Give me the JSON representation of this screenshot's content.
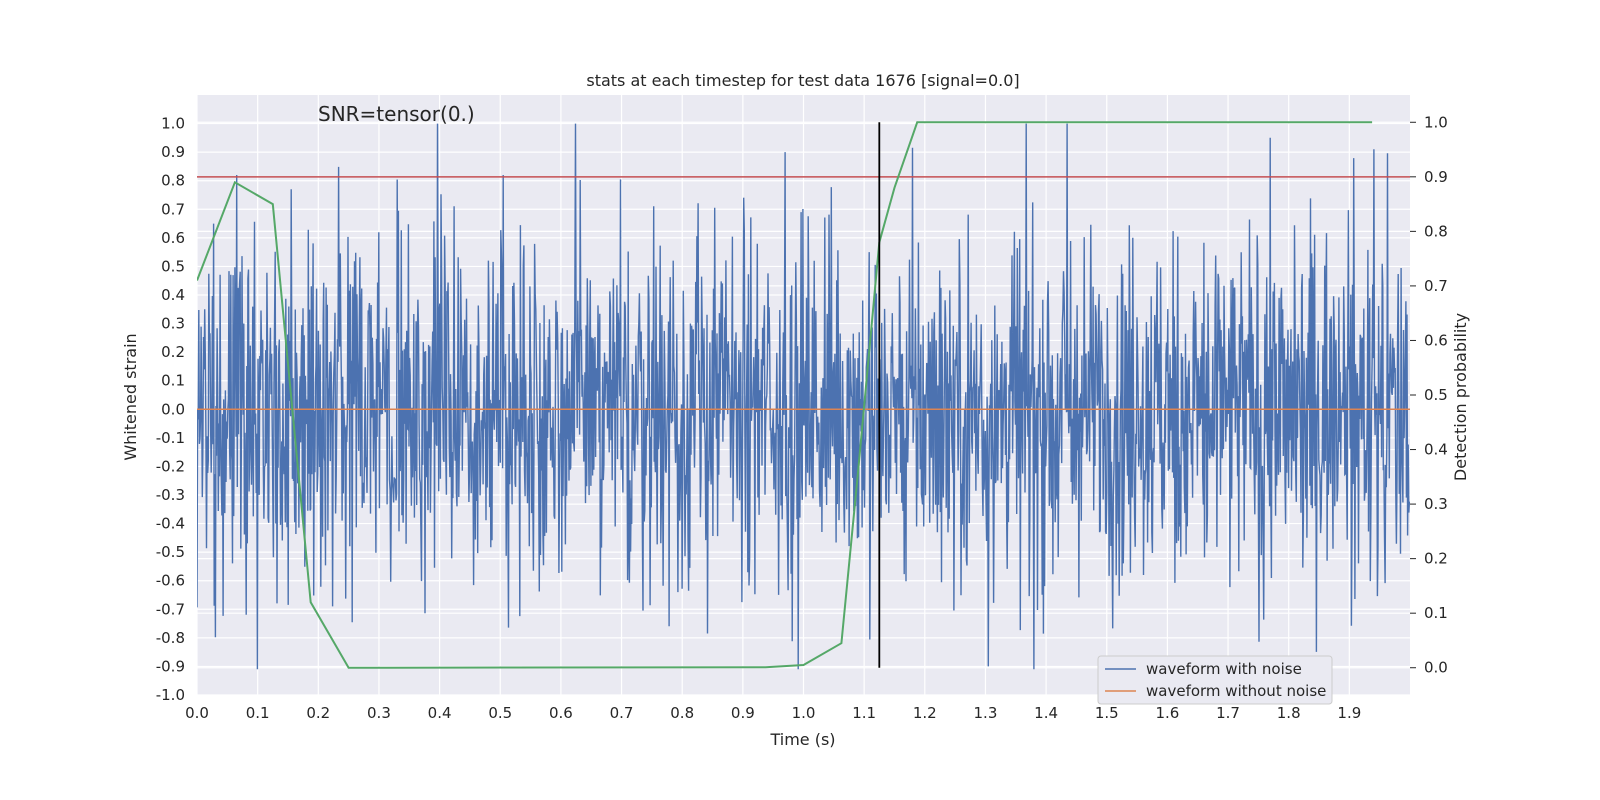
{
  "chart_data": {
    "type": "line",
    "title": "stats at each timestep for test data 1676 [signal=0.0]",
    "xlabel": "Time (s)",
    "ylabel": "Whitened strain",
    "y2label": "Detection probability",
    "annotation": "SNR=tensor(0.)",
    "xlim": [
      0.0,
      2.0
    ],
    "ylim": [
      -1.0,
      1.1
    ],
    "y2lim": [
      -0.05,
      1.05
    ],
    "xticks": [
      "0.0",
      "0.1",
      "0.2",
      "0.3",
      "0.4",
      "0.5",
      "0.6",
      "0.7",
      "0.8",
      "0.9",
      "1.0",
      "1.1",
      "1.2",
      "1.3",
      "1.4",
      "1.5",
      "1.6",
      "1.7",
      "1.8",
      "1.9"
    ],
    "yticks": [
      "1.0",
      "0.9",
      "0.8",
      "0.7",
      "0.6",
      "0.5",
      "0.4",
      "0.3",
      "0.2",
      "0.1",
      "0.0",
      "-0.1",
      "-0.2",
      "-0.3",
      "-0.4",
      "-0.5",
      "-0.6",
      "-0.7",
      "-0.8",
      "-0.9",
      "-1.0"
    ],
    "y2ticks": [
      "1.0",
      "0.9",
      "0.8",
      "0.7",
      "0.6",
      "0.5",
      "0.4",
      "0.3",
      "0.2",
      "0.1",
      "0.0"
    ],
    "grid": true,
    "legend_position": "lower-right",
    "series": [
      {
        "name": "waveform with noise",
        "color": "#4c72b0",
        "axis": "left",
        "sample_rate_hz": 2048,
        "amplitude_range": [
          -0.91,
          1.0
        ],
        "peaks": [
          {
            "x": 0.065,
            "y": 0.82
          },
          {
            "x": 0.155,
            "y": 0.77
          },
          {
            "x": 0.505,
            "y": 0.82
          },
          {
            "x": 0.97,
            "y": 0.9
          },
          {
            "x": 1.435,
            "y": 1.0
          },
          {
            "x": 1.94,
            "y": 0.91
          },
          {
            "x": 0.1,
            "y": -0.91
          },
          {
            "x": 1.38,
            "y": -0.91
          },
          {
            "x": 1.305,
            "y": -0.9
          }
        ]
      },
      {
        "name": "waveform without noise",
        "color": "#dd8452",
        "axis": "left",
        "x": [
          0.0,
          2.0
        ],
        "y": [
          0.0,
          0.0
        ]
      },
      {
        "color": "#55a868",
        "axis": "right",
        "x": [
          0.0,
          0.0625,
          0.125,
          0.1875,
          0.25,
          0.3125,
          0.9375,
          1.0,
          1.0625,
          1.09,
          1.125,
          1.15,
          1.1875,
          1.25,
          1.9375
        ],
        "y": [
          0.71,
          0.89,
          0.85,
          0.12,
          0.0,
          0.0,
          0.001,
          0.005,
          0.045,
          0.36,
          0.78,
          0.88,
          1.0,
          1.0,
          1.0
        ]
      },
      {
        "color": "#c44e52",
        "axis": "right",
        "type": "hline",
        "y": 0.9
      },
      {
        "color": "#000000",
        "axis": "right",
        "type": "vline",
        "x": 1.125,
        "y": [
          0.0,
          1.0
        ]
      }
    ]
  }
}
